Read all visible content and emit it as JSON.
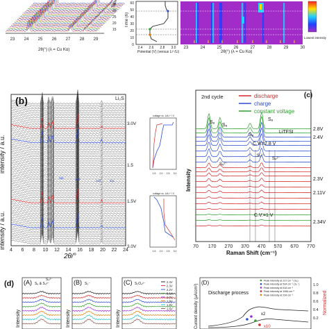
{
  "top": {
    "left": {
      "x_ticks": [
        "23",
        "24",
        "25",
        "26",
        "27",
        "28",
        "29"
      ],
      "x_label": "2θ(°) (λ = Cu Kα)",
      "y_axis": "Time (h)",
      "y_ticks": [
        "15",
        "20",
        "25",
        "30",
        "35"
      ]
    },
    "middle": {
      "y_label": "Time (h)",
      "y_ticks": [
        "0",
        "10",
        "20",
        "30",
        "40",
        "50",
        "60"
      ],
      "x_ticks": [
        "2.4",
        "2.6",
        "2.8",
        "3.0"
      ],
      "x_label": "Potential (V) (versus Li⁺/Li)"
    },
    "right": {
      "x_ticks": [
        "23",
        "24",
        "25",
        "26",
        "27",
        "28",
        "29",
        "30"
      ],
      "x_label": "2θ(°) (λ = Cu Kα)",
      "legend_low": "Lowest intensity"
    }
  },
  "panel_b": {
    "label": "(b)",
    "legend": "Li₂S",
    "y_label": "intensity / a.u.",
    "x_label": "2θ/°",
    "x_ticks": [
      "4",
      "6",
      "8",
      "10",
      "12",
      "14",
      "16",
      "18",
      "20",
      "22",
      "24"
    ],
    "voltage_marks": [
      "3.0V",
      "1.5",
      "1.5V",
      "3.0V"
    ],
    "peak_labels": [
      "111",
      "200",
      "220",
      "311"
    ],
    "inset_top_label": "voltage vs. Li/Li⁺ / V",
    "inset_bottom_label": "voltage vs. Li/Li⁺ / V",
    "inset_ticks": [
      "1.5",
      "2.0",
      "2.5",
      "3.0"
    ]
  },
  "panel_c": {
    "label": "(c)",
    "cycle": "2nd cycle",
    "legend": [
      {
        "name": "discharge",
        "color": "#d62728"
      },
      {
        "name": "charge",
        "color": "#2b4bd6"
      },
      {
        "name": "constant voltage",
        "color": "#2ca02c"
      }
    ],
    "y_label": "Intensity",
    "x_label": "Raman Shift (cm⁻¹)",
    "x_ticks": [
      "70",
      "170",
      "270",
      "370",
      "470",
      "570",
      "670",
      "770"
    ],
    "peak_labels": [
      "S₈",
      "S₈",
      "S₈",
      "S₈",
      "S₆²⁻",
      "S₄²⁻",
      "S₈²⁻"
    ],
    "cv_top": "C.V.=2.8 V",
    "cv_bottom": "C.V.=1 V",
    "salt": "LiTFSI",
    "voltages": [
      "2.8V",
      "2.4V",
      "2.3V",
      "2.11V",
      "2.34V"
    ]
  },
  "panel_d": {
    "label": "(d)",
    "sub_a": "(A)",
    "sub_a_species": "S₈ & S₄²⁻",
    "sub_a_species2": "S₃²⁻",
    "sub_b": "(B)",
    "sub_b_species": "S₃⁻",
    "sub_c": "(C)",
    "sub_c_species": "S₂O₄²⁻",
    "y_label": "Intensity",
    "c_legend": [
      "2.4V",
      "2.3V",
      "2.2V",
      "2.1V",
      "2.0V",
      "1.9V",
      "1.8V",
      "1.6V"
    ],
    "sub_d": "(D)",
    "d_title": "Discharge process",
    "d_legend": [
      "Peak intensity at 217 cm⁻¹ (S₈)",
      "Peak intensity at 534 cm⁻¹ (S₃⁻)",
      "Peak intensity at 618 cm⁻¹",
      "Peak intensity at 1066 cm⁻¹",
      "Peak intensity at 234 cm⁻¹"
    ],
    "d_y_label": "Current density (μA/cm²)",
    "d_y_ticks": [
      "1.0",
      "0.8",
      "0.6",
      "0.4",
      "0.2"
    ],
    "d_right_label": "Normalized",
    "d_x2": "x2",
    "d_x10": "x10"
  }
}
